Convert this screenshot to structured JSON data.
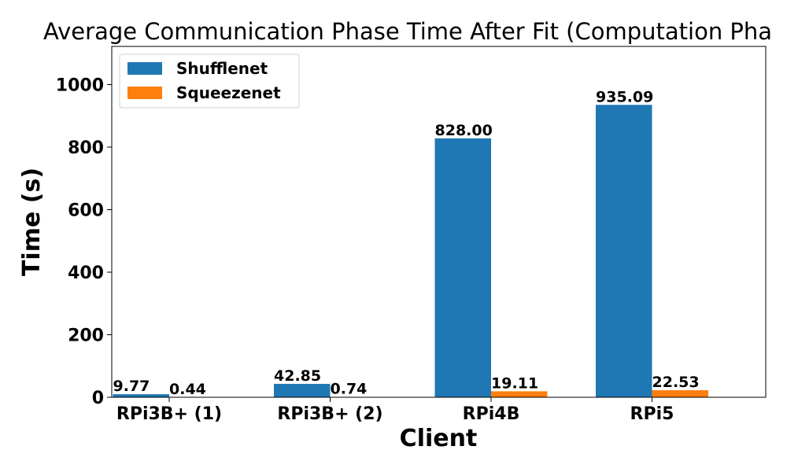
{
  "chart_data": {
    "type": "bar",
    "title": "Average Communication Phase Time After Fit (Computation Pha",
    "xlabel": "Client",
    "ylabel": "Time (s)",
    "categories": [
      "RPi3B+ (1)",
      "RPi3B+ (2)",
      "RPi4B",
      "RPi5"
    ],
    "series": [
      {
        "name": "Shufflenet",
        "color": "#1f77b4",
        "values": [
          9.77,
          42.85,
          828.0,
          935.09
        ],
        "labels": [
          "9.77",
          "42.85",
          "828.00",
          "935.09"
        ]
      },
      {
        "name": "Squeezenet",
        "color": "#ff7f0e",
        "values": [
          0.44,
          0.74,
          19.11,
          22.53
        ],
        "labels": [
          "0.44",
          "0.74",
          "19.11",
          "22.53"
        ]
      }
    ],
    "ylim": [
      0,
      1122
    ],
    "yticks": [
      0,
      200,
      400,
      600,
      800,
      1000
    ],
    "grid": false,
    "legend": "top-left"
  }
}
